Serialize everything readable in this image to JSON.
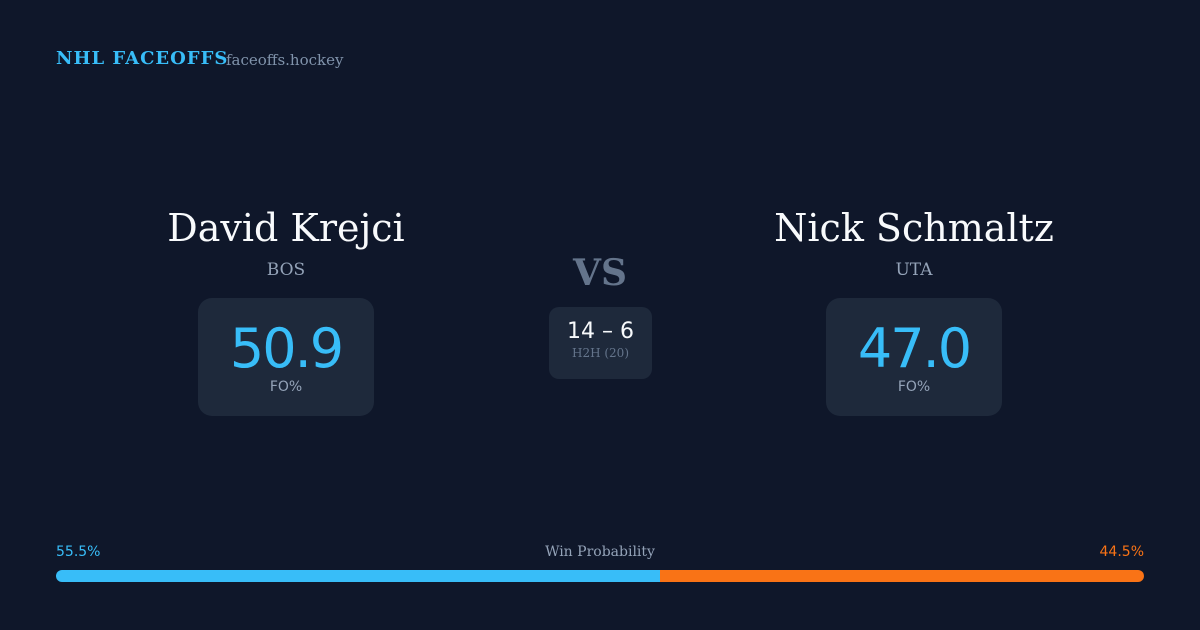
{
  "header": {
    "brand": "NHL FACEOFFS",
    "site": "faceoffs.hockey"
  },
  "left": {
    "name": "David Krejci",
    "team": "BOS",
    "fo_pct": "50.9",
    "fo_label": "FO%"
  },
  "right": {
    "name": "Nick Schmaltz",
    "team": "UTA",
    "fo_pct": "47.0",
    "fo_label": "FO%"
  },
  "vs": "VS",
  "h2h": {
    "score": "14 – 6",
    "label": "H2H (20)"
  },
  "win_probability": {
    "label": "Win Probability",
    "left_pct": "55.5%",
    "right_pct": "44.5%",
    "left_value": 55.5,
    "right_value": 44.5
  },
  "colors": {
    "left": "#38bdf8",
    "right": "#f97316",
    "background": "#0f172a"
  }
}
